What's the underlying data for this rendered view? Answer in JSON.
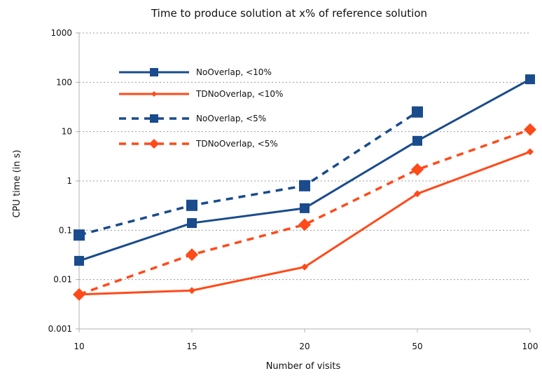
{
  "chart_data": {
    "type": "line",
    "title": "Time to produce solution at x% of reference solution",
    "xlabel": "Number of visits",
    "ylabel": "CPU time (in s)",
    "yscale": "log",
    "ylim": [
      0.001,
      1000
    ],
    "y_ticks": [
      "1000",
      "100",
      "10",
      "1",
      "0.1",
      "0.01",
      "0.001"
    ],
    "categories": [
      "10",
      "15",
      "20",
      "50",
      "100"
    ],
    "grid": "horizontal dashed",
    "legend_position": "top-left",
    "series": [
      {
        "name": "NoOverlap, <10%",
        "values": [
          0.024,
          0.14,
          0.28,
          6.5,
          115
        ],
        "color": "#1a4b8c",
        "dash": "solid",
        "marker": "square"
      },
      {
        "name": "TDNoOverlap, <10%",
        "values": [
          0.005,
          0.006,
          0.018,
          0.55,
          3.9
        ],
        "color": "#ff4a1a",
        "dash": "solid",
        "marker": "diamond"
      },
      {
        "name": "NoOverlap, <5%",
        "values": [
          0.08,
          0.32,
          0.8,
          25,
          null
        ],
        "color": "#1a4b8c",
        "dash": "dashed",
        "marker": "square"
      },
      {
        "name": "TDNoOverlap, <5%",
        "values": [
          0.005,
          0.032,
          0.13,
          1.7,
          11
        ],
        "color": "#ff4a1a",
        "dash": "dashed",
        "marker": "diamond"
      }
    ]
  }
}
